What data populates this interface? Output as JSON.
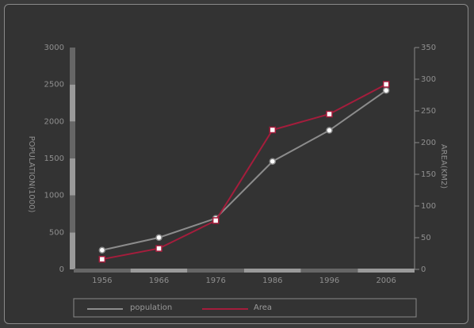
{
  "chart_data": {
    "type": "line",
    "x": [
      "1956",
      "1966",
      "1976",
      "1986",
      "1996",
      "2006"
    ],
    "series": [
      {
        "name": "population",
        "axis": "left",
        "values": [
          260,
          430,
          690,
          1460,
          1880,
          2420
        ],
        "color": "#8c8c8c",
        "marker": "circle"
      },
      {
        "name": "Area",
        "axis": "right",
        "values": [
          16,
          33,
          77,
          220,
          245,
          292
        ],
        "color": "#a51d3c",
        "marker": "square"
      }
    ],
    "ylabel": "POPULATION(1000)",
    "y2label": "AREA(KM2)",
    "ylim": [
      0,
      3000
    ],
    "y2lim": [
      0,
      350
    ],
    "yticks": [
      0,
      500,
      1000,
      1500,
      2000,
      2500,
      3000
    ],
    "y2ticks": [
      0,
      50,
      100,
      150,
      200,
      250,
      300,
      350
    ],
    "legend_position": "bottom",
    "grid": false
  },
  "colors": {
    "background": "#333333",
    "text": "#8f8f8f",
    "band_dark": "#666666",
    "band_light": "#9a9a9a"
  }
}
